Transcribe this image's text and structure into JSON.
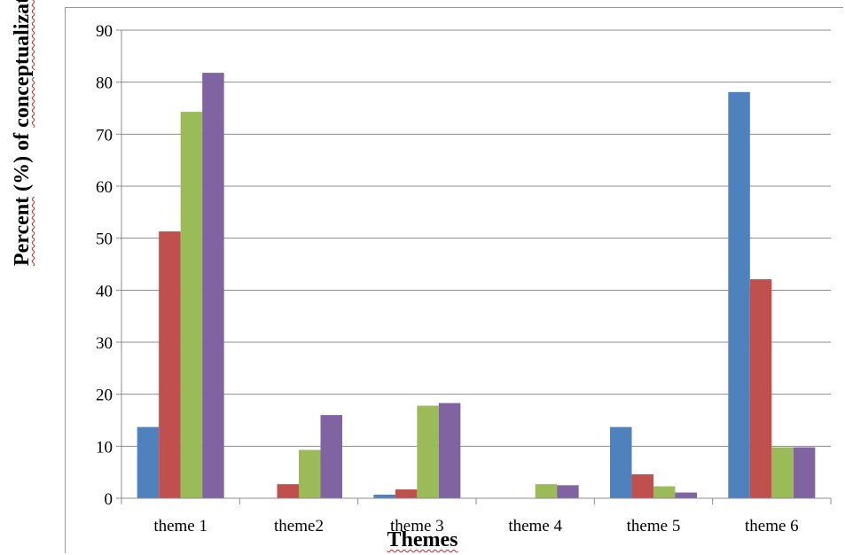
{
  "chart_data": {
    "type": "bar",
    "title": "",
    "xlabel": "Themes",
    "ylabel_parts": [
      "Percent",
      " (%) of ",
      "conceptualizations"
    ],
    "ylabel": "Percent (%) of conceptualizations",
    "categories": [
      "theme 1",
      "theme2",
      "theme 3",
      "theme 4",
      "theme 5",
      "theme 6"
    ],
    "ylim": [
      0,
      90
    ],
    "yticks": [
      0,
      10,
      20,
      30,
      40,
      50,
      60,
      70,
      80,
      90
    ],
    "grid": true,
    "legend": "none",
    "series": [
      {
        "color": "#4f81bd",
        "values": [
          13.7,
          0,
          0.7,
          0,
          13.7,
          78.1
        ]
      },
      {
        "color": "#c0504d",
        "values": [
          51.3,
          2.7,
          1.7,
          0,
          4.6,
          42.1
        ]
      },
      {
        "color": "#9bbb59",
        "values": [
          74.3,
          9.3,
          17.8,
          2.7,
          2.3,
          9.8
        ]
      },
      {
        "color": "#8064a2",
        "values": [
          81.8,
          16.0,
          18.3,
          2.5,
          1.1,
          9.8
        ]
      }
    ]
  }
}
